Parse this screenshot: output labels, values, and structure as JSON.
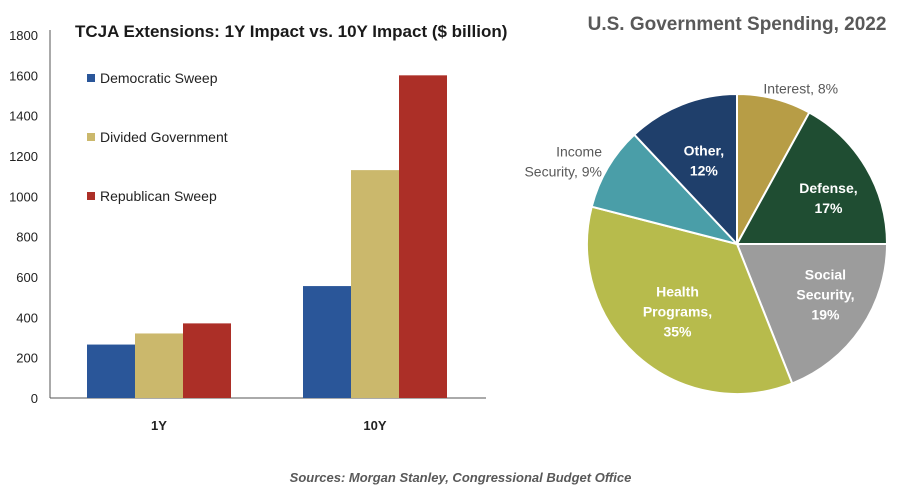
{
  "chart_data": [
    {
      "type": "bar",
      "title": "TCJA Extensions: 1Y Impact vs. 10Y Impact ($ billion)",
      "categories": [
        "1Y",
        "10Y"
      ],
      "series": [
        {
          "name": "Democratic Sweep",
          "color": "#2a5699",
          "values": [
            265,
            555
          ]
        },
        {
          "name": "Divided Government",
          "color": "#cbb86c",
          "values": [
            320,
            1130
          ]
        },
        {
          "name": "Republican Sweep",
          "color": "#ac2f27",
          "values": [
            370,
            1600
          ]
        }
      ],
      "yticks": [
        "0",
        "200",
        "400",
        "600",
        "800",
        "1000",
        "1200",
        "1400",
        "1600",
        "1800"
      ],
      "ylim": [
        0,
        1800
      ],
      "legend_position": "top-left",
      "grid": false
    },
    {
      "type": "pie",
      "title": "U.S. Government Spending, 2022",
      "slices": [
        {
          "label_lines": [
            "Interest, 8%"
          ],
          "value": 8,
          "color": "#b79d46",
          "label_style": "outside"
        },
        {
          "label_lines": [
            "Defense,",
            "17%"
          ],
          "value": 17,
          "color": "#1f4d32",
          "label_style": "inside"
        },
        {
          "label_lines": [
            "Social",
            "Security,",
            "19%"
          ],
          "value": 19,
          "color": "#9c9c9c",
          "label_style": "inside"
        },
        {
          "label_lines": [
            "Health",
            "Programs,",
            "35%"
          ],
          "value": 35,
          "color": "#b7bb4c",
          "label_style": "inside"
        },
        {
          "label_lines": [
            "Income",
            "Security, 9%"
          ],
          "value": 9,
          "color": "#4a9ea8",
          "label_style": "outside"
        },
        {
          "label_lines": [
            "Other,",
            "12%"
          ],
          "value": 12,
          "color": "#1f3f6b",
          "label_style": "inside"
        }
      ]
    }
  ],
  "footer": {
    "source": "Sources: Morgan Stanley, Congressional Budget Office"
  }
}
